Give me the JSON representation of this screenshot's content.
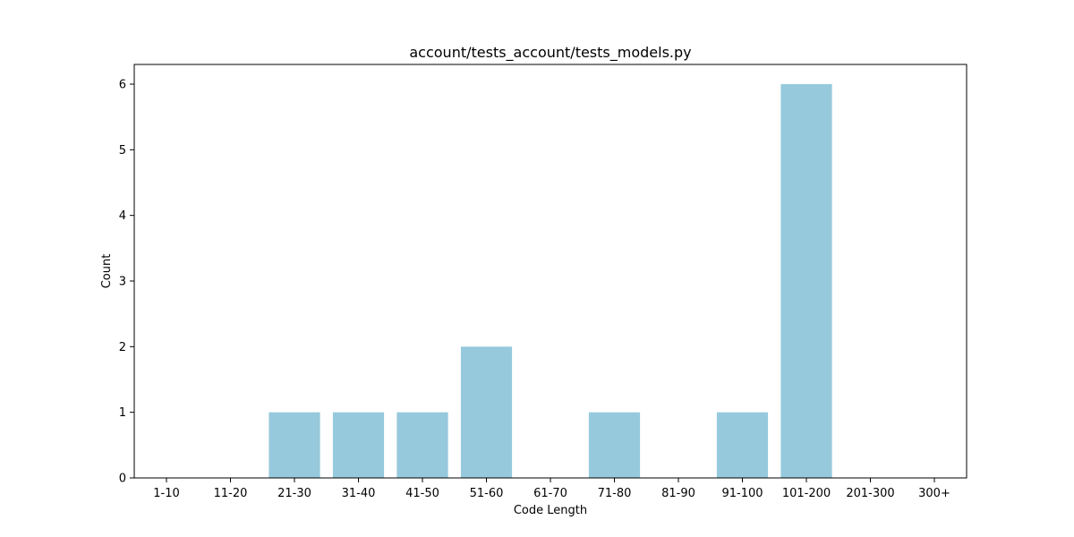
{
  "chart_data": {
    "type": "bar",
    "title": "account/tests_account/tests_models.py",
    "xlabel": "Code Length",
    "ylabel": "Count",
    "categories": [
      "1-10",
      "11-20",
      "21-30",
      "31-40",
      "41-50",
      "51-60",
      "61-70",
      "71-80",
      "81-90",
      "91-100",
      "101-200",
      "201-300",
      "300+"
    ],
    "values": [
      0,
      0,
      1,
      1,
      1,
      2,
      0,
      1,
      0,
      1,
      6,
      0,
      0
    ],
    "yticks": [
      0,
      1,
      2,
      3,
      4,
      5,
      6
    ],
    "ylim": [
      0,
      6.3
    ],
    "bar_color": "#96c9dc",
    "grid": false
  }
}
